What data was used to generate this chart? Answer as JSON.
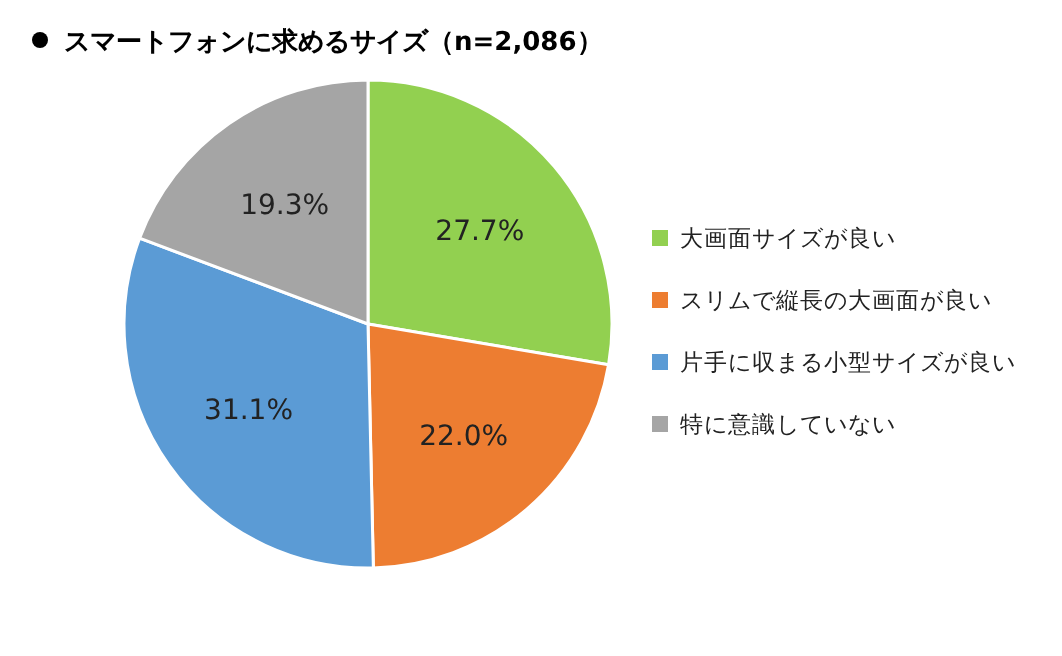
{
  "chart_data": {
    "type": "pie",
    "title": "スマートフォンに求めるサイズ（n=2,086）",
    "categories": [
      "大画面サイズが良い",
      "スリムで縦長の大画面が良い",
      "片手に収まる小型サイズが良い",
      "特に意識していない"
    ],
    "values": [
      27.7,
      22.0,
      31.1,
      19.3
    ],
    "colors": [
      "#92d050",
      "#ed7d31",
      "#5b9bd5",
      "#a5a5a5"
    ],
    "value_labels": [
      "27.7%",
      "22.0%",
      "31.1%",
      "19.3%"
    ],
    "legend": "right"
  }
}
